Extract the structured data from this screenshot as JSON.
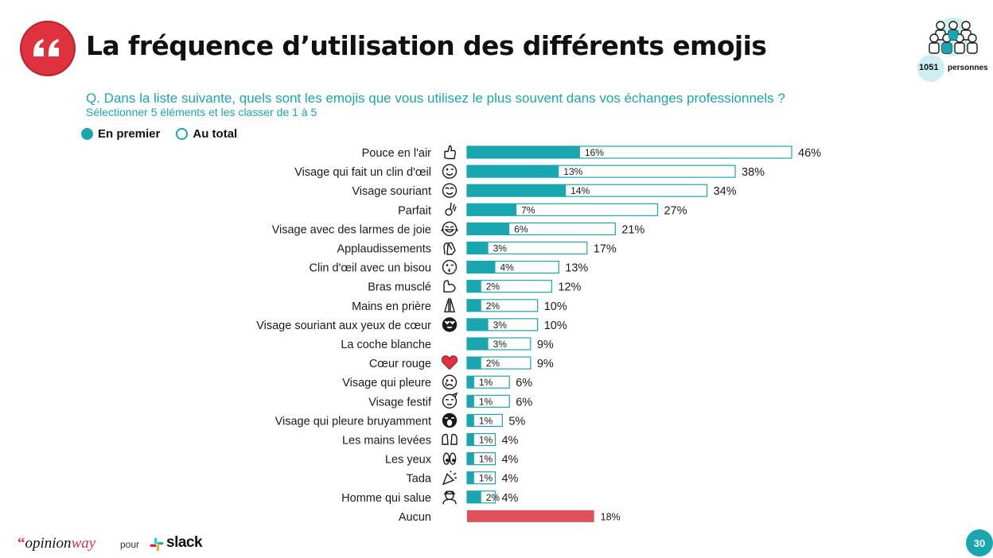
{
  "header": {
    "title": "La fréquence d’utilisation des différents emojis",
    "quote_icon": "quote-icon",
    "sample_count": "1051",
    "sample_label": "personnes",
    "sample_icon": "people-group-icon"
  },
  "question": "Q. Dans la liste suivante, quels sont les emojis que vous utilisez le plus souvent dans vos échanges professionnels ?",
  "instruction": "Sélectionner 5 éléments et les classer de 1 à 5",
  "legend": {
    "first_label": "En premier",
    "total_label": "Au total"
  },
  "colors": {
    "accent": "#19a6b0",
    "none_bar": "#e0505a",
    "heart": "#e0313f"
  },
  "chart_data": {
    "type": "bar",
    "orientation": "horizontal",
    "unit": "%",
    "xlim": [
      0,
      46
    ],
    "categories": [
      "Pouce en l'air",
      "Visage qui fait un clin d'œil",
      "Visage souriant",
      "Parfait",
      "Visage avec des larmes de joie",
      "Applaudissements",
      "Clin d'œil avec un bisou",
      "Bras musclé",
      "Mains en prière",
      "Visage souriant aux yeux de cœur",
      "La coche blanche",
      "Cœur rouge",
      "Visage qui pleure",
      "Visage festif",
      "Visage qui pleure bruyamment",
      "Les mains levées",
      "Les yeux",
      "Tada",
      "Homme qui salue",
      "Aucun"
    ],
    "icons": [
      "thumbs-up-icon",
      "winking-face-icon",
      "smiling-face-icon",
      "ok-hand-icon",
      "tears-of-joy-icon",
      "clapping-hands-icon",
      "kissing-wink-icon",
      "flexed-biceps-icon",
      "praying-hands-icon",
      "heart-eyes-icon",
      "",
      "red-heart-icon",
      "crying-face-icon",
      "party-face-icon",
      "loudly-crying-icon",
      "raised-hands-icon",
      "eyes-icon",
      "tada-icon",
      "saluting-man-icon",
      ""
    ],
    "series": [
      {
        "name": "En premier",
        "values": [
          16,
          13,
          14,
          7,
          6,
          3,
          4,
          2,
          2,
          3,
          3,
          2,
          1,
          1,
          1,
          1,
          1,
          1,
          2,
          null
        ]
      },
      {
        "name": "Au total",
        "values": [
          46,
          38,
          34,
          27,
          21,
          17,
          13,
          12,
          10,
          10,
          9,
          9,
          6,
          6,
          5,
          4,
          4,
          4,
          4,
          18
        ]
      }
    ],
    "first_labels": [
      "16%",
      "13%",
      "14%",
      "7%",
      "6%",
      "3%",
      "4%",
      "2%",
      "2%",
      "3%",
      "3%",
      "2%",
      "1%",
      "1%",
      "1%",
      "1%",
      "1%",
      "1%",
      "2%",
      ""
    ],
    "total_labels": [
      "46%",
      "38%",
      "34%",
      "27%",
      "21%",
      "17%",
      "13%",
      "12%",
      "10%",
      "10%",
      "9%",
      "9%",
      "6%",
      "6%",
      "5%",
      "4%",
      "4%",
      "4%",
      "4%",
      "18%"
    ],
    "highlight_category": "Aucun"
  },
  "footer": {
    "brand_quote": "“",
    "brand_opinion": "opinion",
    "brand_way": "way",
    "pour": "pour",
    "partner": "slack",
    "partner_icon": "slack-logo-icon",
    "page_number": "30"
  }
}
